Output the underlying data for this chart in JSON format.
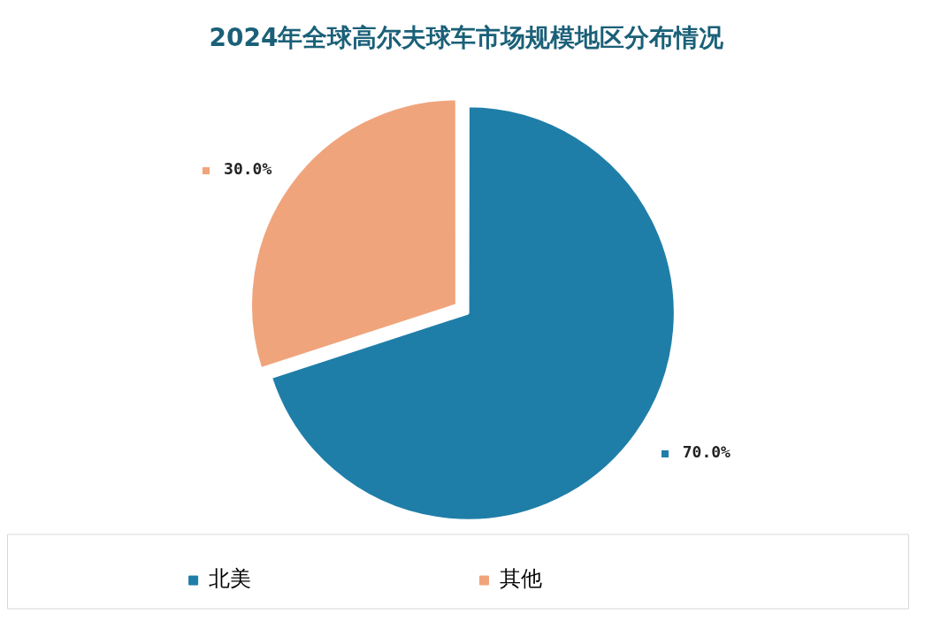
{
  "chart_data": {
    "type": "pie",
    "title": "2024年全球高尔夫球车市场规模地区分布情况",
    "categories": [
      "北美",
      "其他"
    ],
    "values": [
      70,
      30
    ],
    "colors": [
      "#1f7ea8",
      "#f0a47c"
    ],
    "value_labels": [
      "70.0%",
      "30.0%"
    ],
    "legend": "bottom"
  }
}
